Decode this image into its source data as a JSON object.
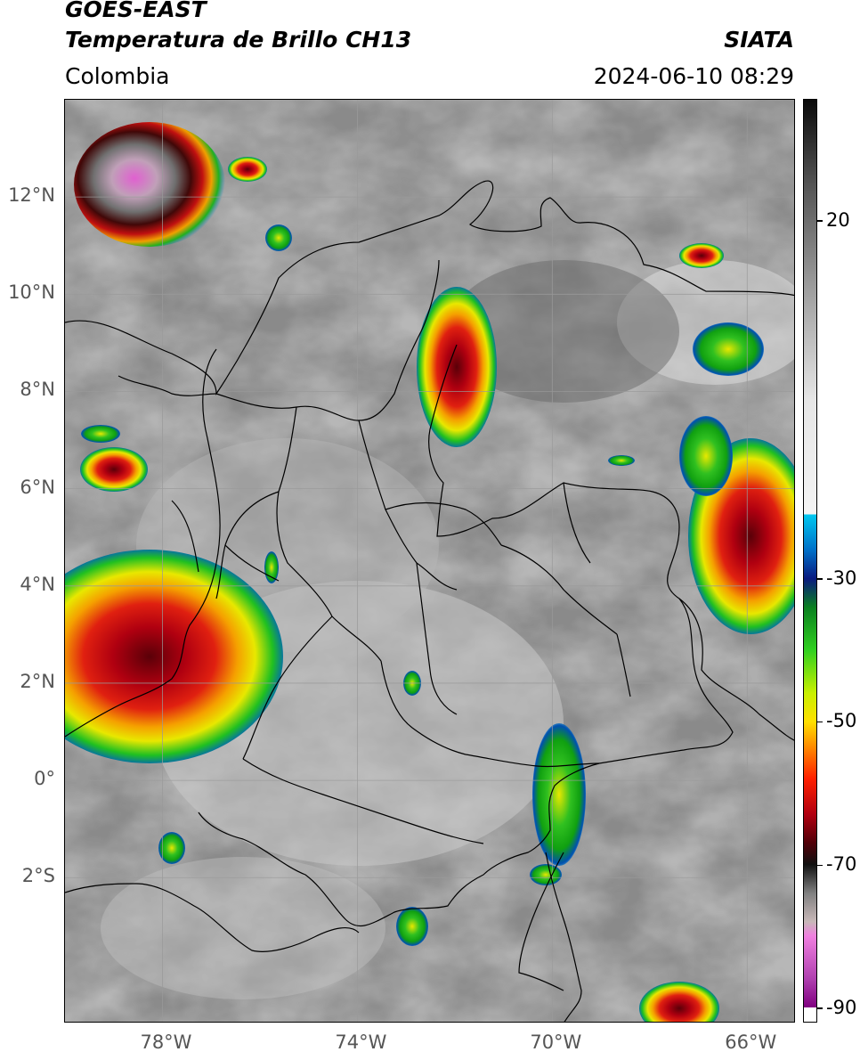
{
  "header": {
    "satellite": "GOES-EAST",
    "product": "Temperatura de Brillo CH13",
    "region": "Colombia",
    "agency": "SIATA",
    "datetime": "2024-06-10 08:29"
  },
  "map": {
    "lon_range": [
      -80,
      -65
    ],
    "lat_range": [
      -5,
      14
    ],
    "lat_labels": [
      {
        "lat": 12,
        "text": "12°N"
      },
      {
        "lat": 10,
        "text": "10°N"
      },
      {
        "lat": 8,
        "text": "8°N"
      },
      {
        "lat": 6,
        "text": "6°N"
      },
      {
        "lat": 4,
        "text": "4°N"
      },
      {
        "lat": 2,
        "text": "2°N"
      },
      {
        "lat": 0,
        "text": "0°"
      },
      {
        "lat": -2,
        "text": "2°S"
      }
    ],
    "lon_labels": [
      {
        "lon": -78,
        "text": "78°W"
      },
      {
        "lon": -74,
        "text": "74°W"
      },
      {
        "lon": -70,
        "text": "70°W"
      },
      {
        "lon": -66,
        "text": "66°W"
      }
    ],
    "gridlines": true
  },
  "colorbar": {
    "range": [
      -92,
      37
    ],
    "tick_labels": [
      {
        "value": 20,
        "text": "20"
      },
      {
        "value": -30,
        "text": "-30"
      },
      {
        "value": -50,
        "text": "-50"
      },
      {
        "value": -70,
        "text": "-70"
      },
      {
        "value": -90,
        "text": "-90"
      }
    ]
  }
}
